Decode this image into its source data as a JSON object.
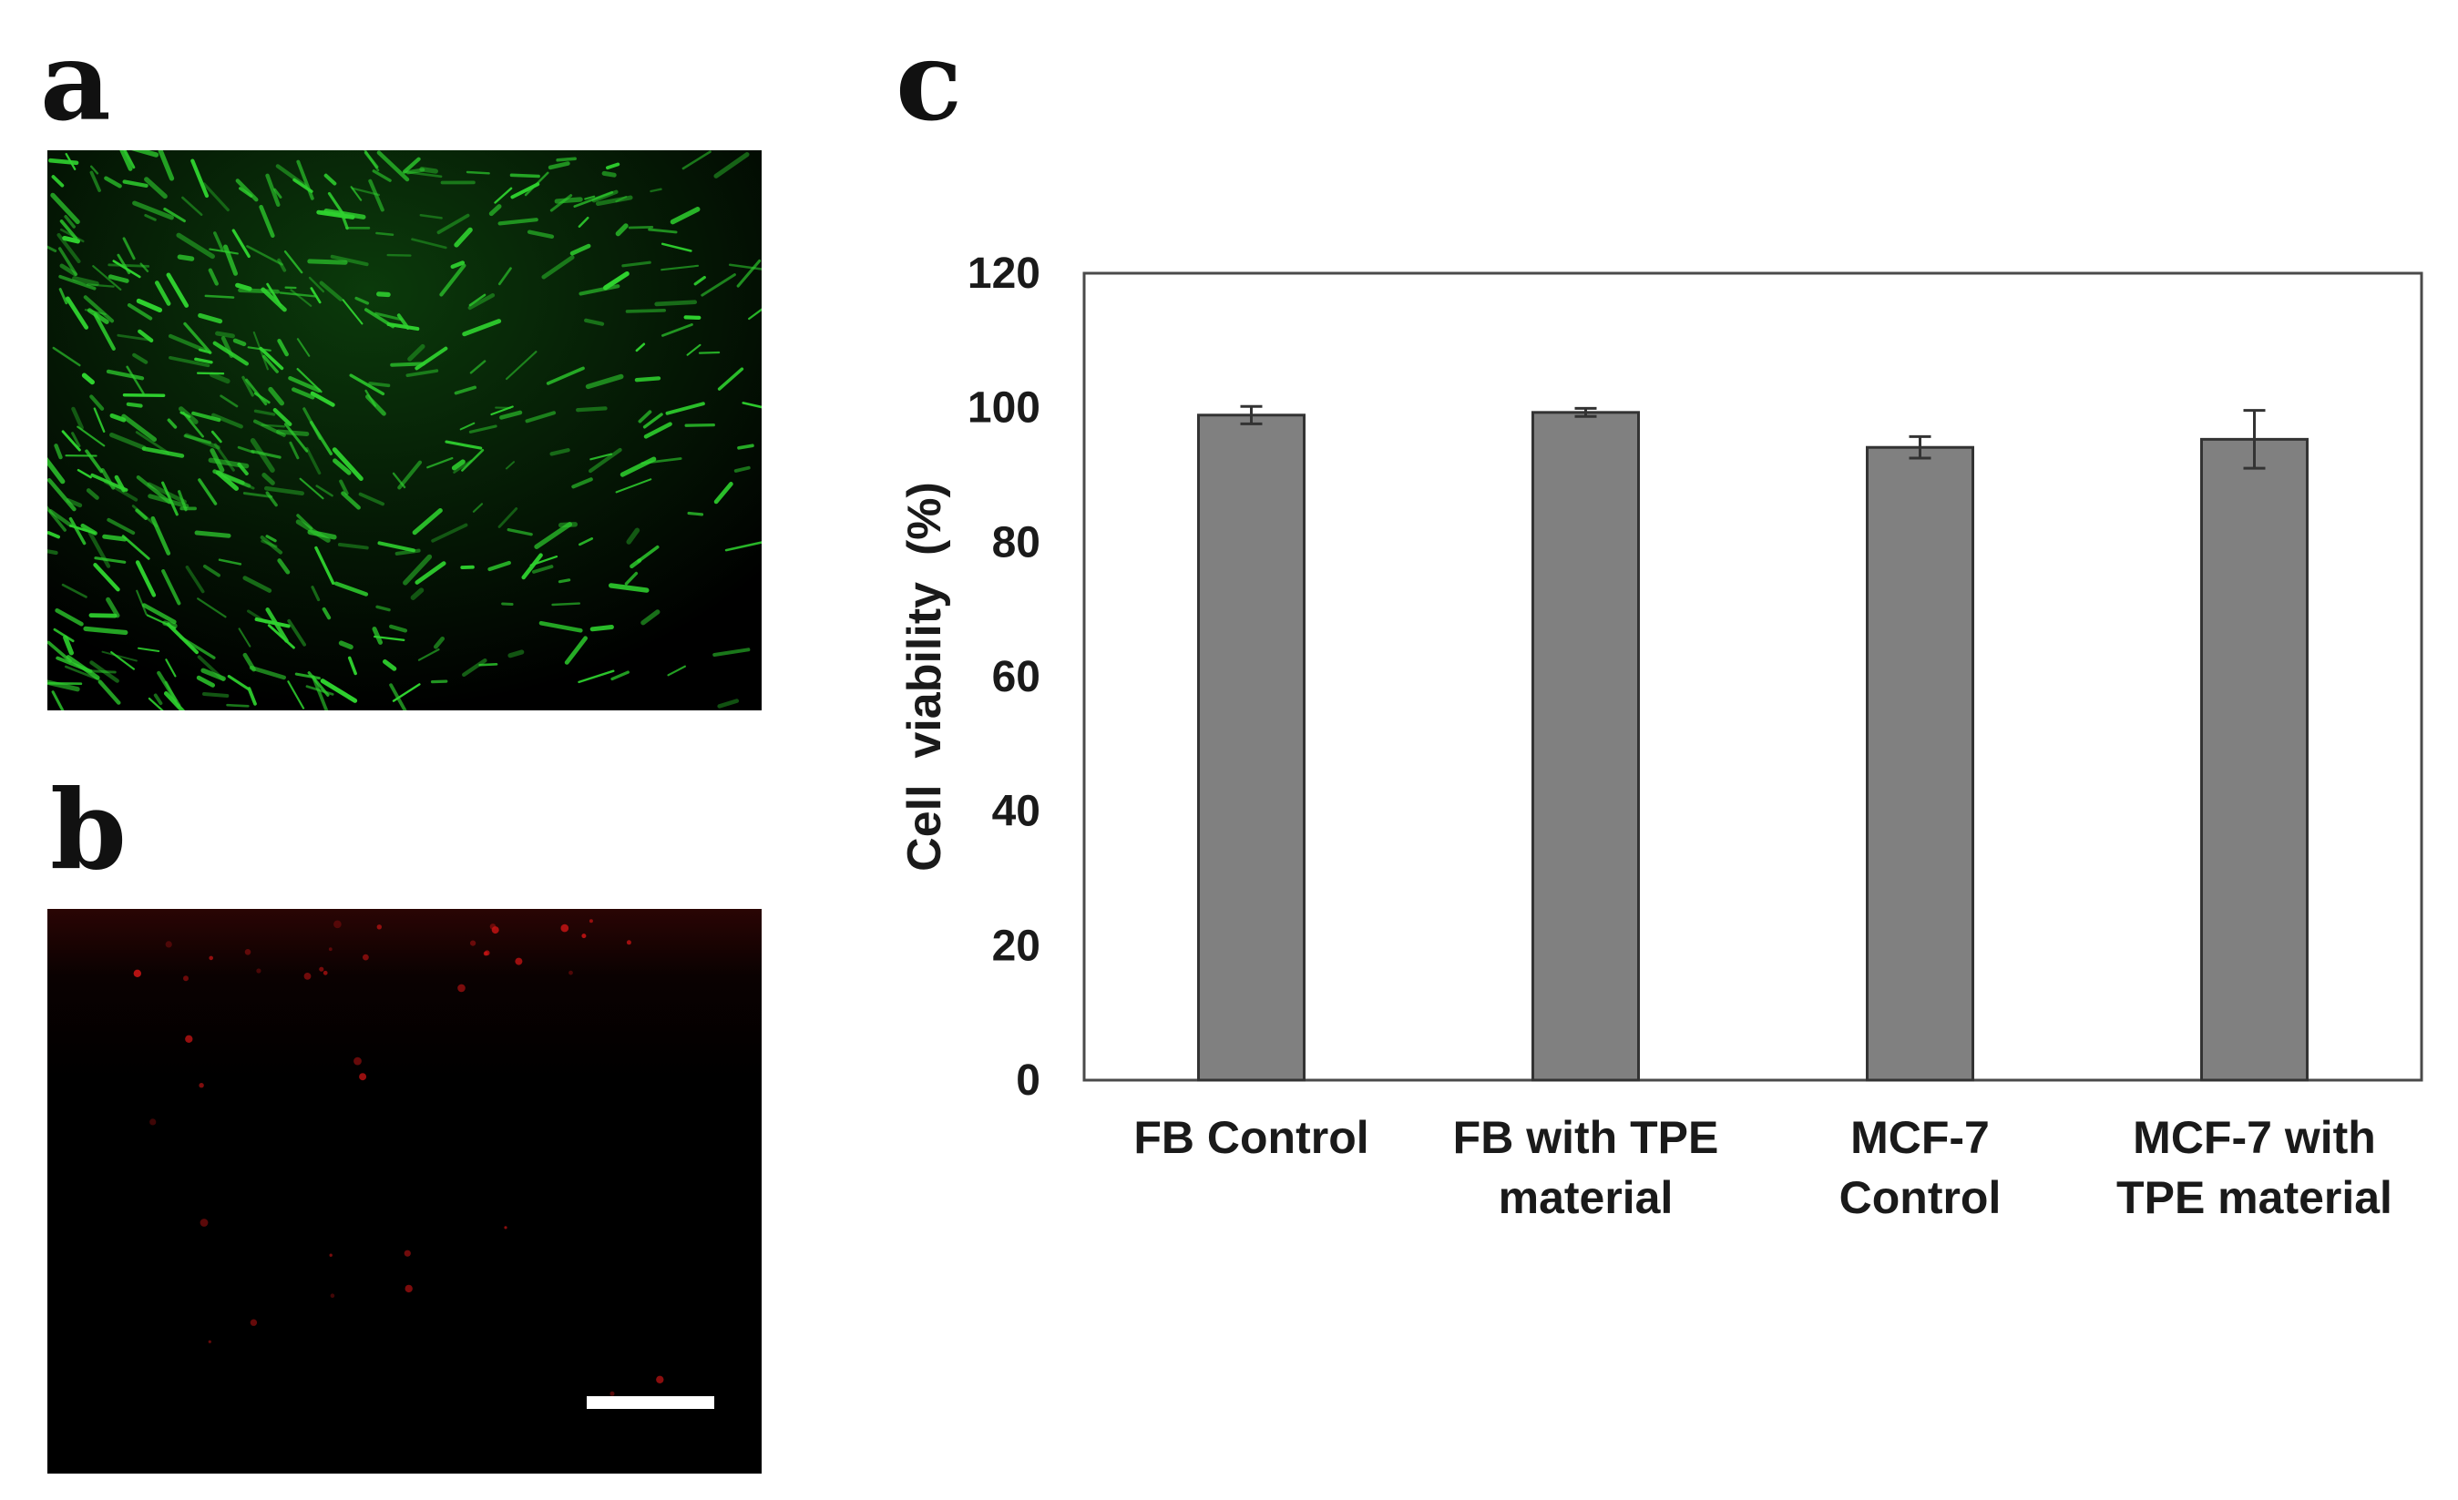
{
  "panels": {
    "a": "a",
    "b": "b",
    "c": "c"
  },
  "colors": {
    "bar_fill": "#808080",
    "bar_stroke": "#333333",
    "live_stain": "#2fd22f",
    "dead_stain": "#c81414"
  },
  "chart_data": {
    "type": "bar",
    "title": "",
    "xlabel": "",
    "ylabel": "Cell  viability  (%)",
    "ylim": [
      0,
      120
    ],
    "yticks": [
      0,
      20,
      40,
      60,
      80,
      100,
      120
    ],
    "categories": [
      [
        "FB Control"
      ],
      [
        "FB with TPE",
        "material"
      ],
      [
        "MCF-7",
        "Control"
      ],
      [
        "MCF-7 with",
        "TPE material"
      ]
    ],
    "values": [
      98.9,
      99.3,
      94.1,
      95.3
    ],
    "errors": [
      1.3,
      0.6,
      1.6,
      4.3
    ],
    "grid": false,
    "legend": "none"
  }
}
